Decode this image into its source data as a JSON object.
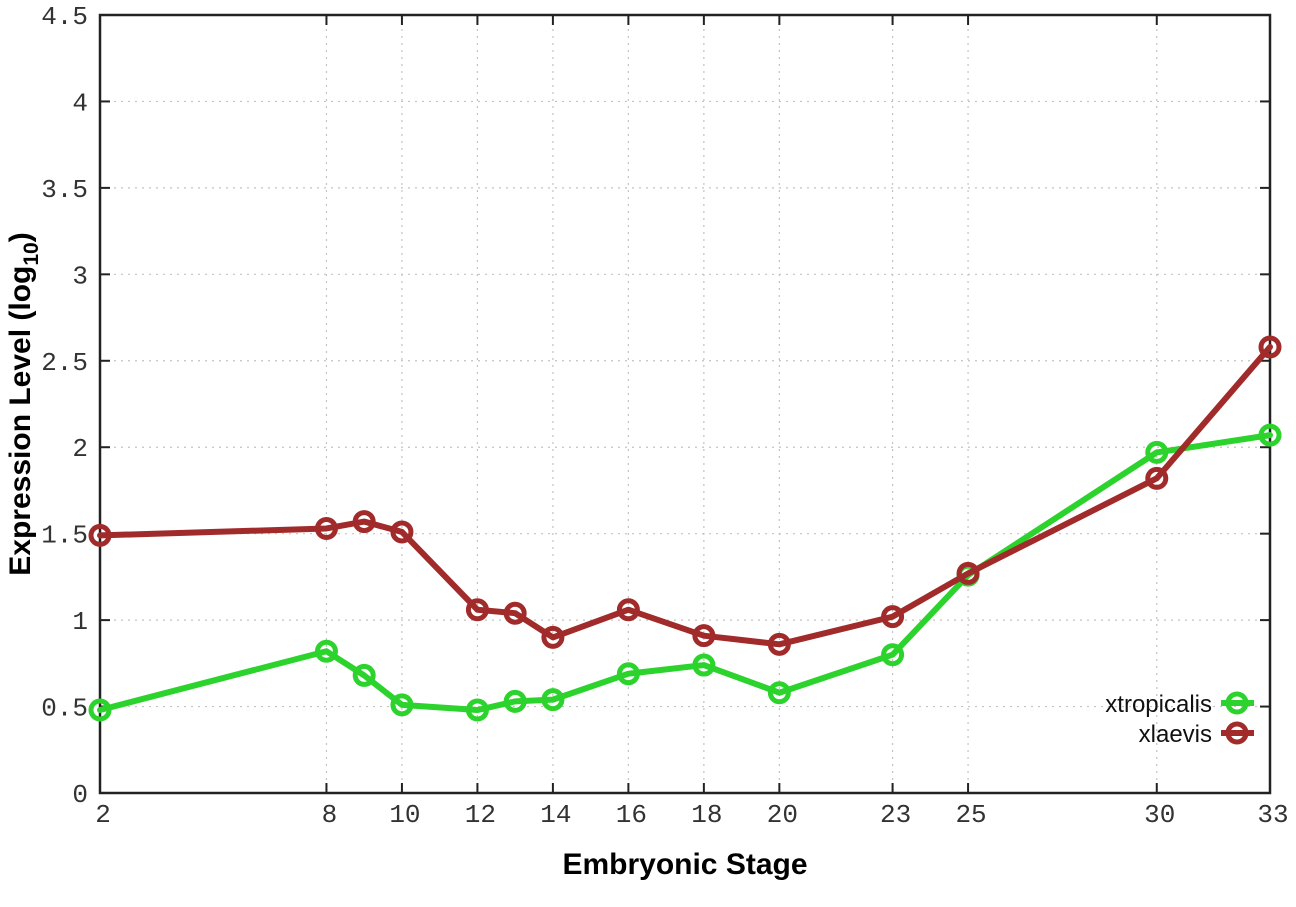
{
  "figure": {
    "background": "#ffffff"
  },
  "chart_data": {
    "type": "line",
    "title": "",
    "xlabel": "Embryonic Stage",
    "ylabel": {
      "pre": "Expression Level (log",
      "sub": "10",
      "post": ")"
    },
    "xlim": [
      2,
      33
    ],
    "ylim": [
      0,
      4.5
    ],
    "x_ticks": [
      2,
      8,
      10,
      12,
      14,
      16,
      18,
      20,
      23,
      25,
      30,
      33
    ],
    "y_ticks": [
      0,
      0.5,
      1,
      1.5,
      2,
      2.5,
      3,
      3.5,
      4,
      4.5
    ],
    "y_tick_labels": [
      "0",
      "0.5",
      "1",
      "1.5",
      "2",
      "2.5",
      "3",
      "3.5",
      "4",
      "4.5"
    ],
    "grid": true,
    "legend_position": "inside-bottom-right",
    "x": [
      2,
      8,
      9,
      10,
      12,
      13,
      14,
      16,
      18,
      20,
      23,
      25,
      30,
      33
    ],
    "series": [
      {
        "name": "xtropicalis",
        "color": "#2cd32c",
        "marker": "open-circle",
        "values": [
          0.48,
          0.82,
          0.68,
          0.51,
          0.48,
          0.53,
          0.54,
          0.69,
          0.74,
          0.58,
          0.8,
          1.26,
          1.97,
          2.07
        ]
      },
      {
        "name": "xlaevis",
        "color": "#a12a2a",
        "marker": "open-circle",
        "values": [
          1.49,
          1.53,
          1.57,
          1.51,
          1.06,
          1.04,
          0.9,
          1.06,
          0.91,
          0.86,
          1.02,
          1.27,
          1.82,
          2.58
        ]
      }
    ],
    "axis_color": "#222222",
    "grid_color": "#c3c3c3",
    "tick_label_color": "#333333"
  }
}
